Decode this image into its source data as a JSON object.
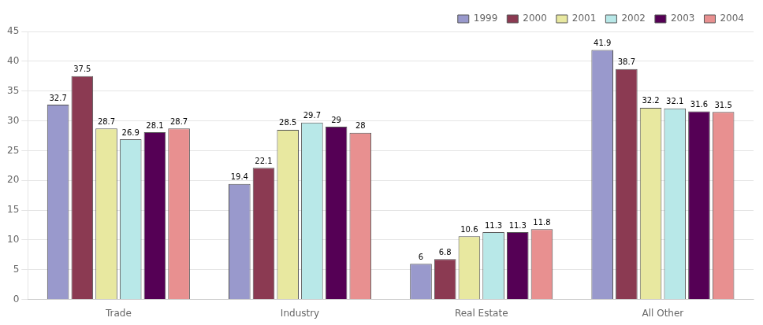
{
  "chart_data": {
    "type": "bar",
    "categories": [
      "Trade",
      "Industry",
      "Real Estate",
      "All Other"
    ],
    "series": [
      {
        "name": "1999",
        "color": "#9999cc",
        "values": [
          32.7,
          19.4,
          6.0,
          41.9
        ]
      },
      {
        "name": "2000",
        "color": "#8b3a52",
        "values": [
          37.5,
          22.1,
          6.8,
          38.7
        ]
      },
      {
        "name": "2001",
        "color": "#e8e8a0",
        "values": [
          28.7,
          28.5,
          10.6,
          32.2
        ]
      },
      {
        "name": "2002",
        "color": "#b8e8e8",
        "values": [
          26.9,
          29.7,
          11.3,
          32.1
        ]
      },
      {
        "name": "2003",
        "color": "#550055",
        "values": [
          28.1,
          29.0,
          11.3,
          31.6
        ]
      },
      {
        "name": "2004",
        "color": "#e89090",
        "values": [
          28.7,
          28.0,
          11.8,
          31.5
        ]
      }
    ],
    "ylim": [
      0,
      45
    ],
    "yticks": [
      0,
      5,
      10,
      15,
      20,
      25,
      30,
      35,
      40,
      45
    ],
    "grid": true,
    "legend": "upper right",
    "data_labels": true
  }
}
